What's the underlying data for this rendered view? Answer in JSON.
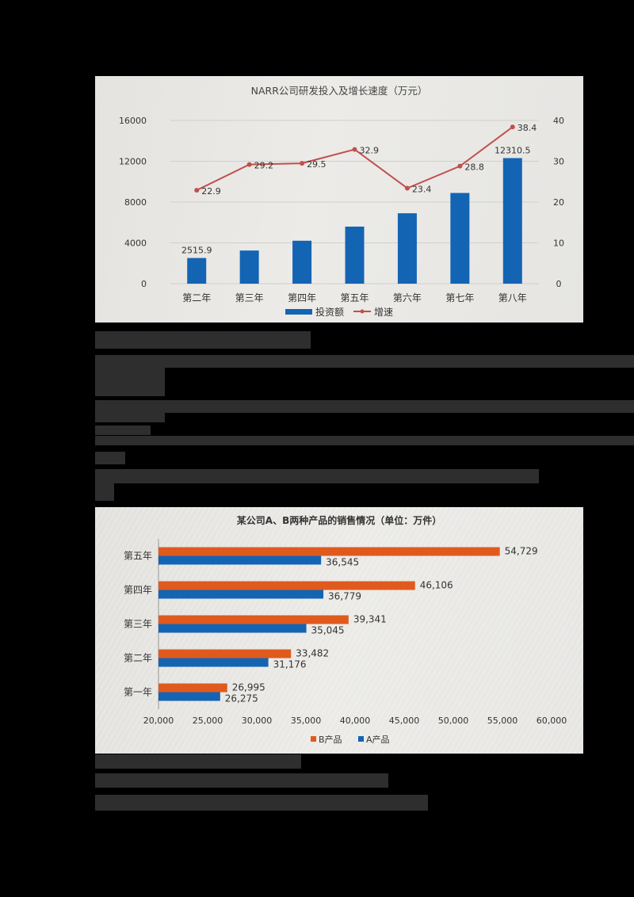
{
  "chart_data": [
    {
      "type": "bar+line",
      "title": "NARR公司研发投入及增长速度（万元）",
      "categories": [
        "第二年",
        "第三年",
        "第四年",
        "第五年",
        "第六年",
        "第七年",
        "第八年"
      ],
      "series": [
        {
          "name": "投资额",
          "type": "bar",
          "axis": "left",
          "color": "#1464b4",
          "values": [
            2515.9,
            3250.5,
            4209.4,
            5594.3,
            6903.4,
            8891.6,
            12310.5
          ],
          "labels": [
            "2515.9",
            "",
            "",
            "",
            "",
            "",
            "12310.5"
          ]
        },
        {
          "name": "增速",
          "type": "line",
          "axis": "right",
          "color": "#c0504d",
          "values": [
            22.9,
            29.2,
            29.5,
            32.9,
            23.4,
            28.8,
            38.4
          ],
          "labels": [
            "22.9",
            "29.2",
            "29.5",
            "32.9",
            "23.4",
            "28.8",
            "38.4"
          ]
        }
      ],
      "y_left": {
        "ticks": [
          "0",
          "4000",
          "8000",
          "12000",
          "16000"
        ],
        "range": [
          0,
          16000
        ]
      },
      "y_right": {
        "ticks": [
          "0",
          "10",
          "20",
          "30",
          "40"
        ],
        "range": [
          0,
          40
        ]
      },
      "grid": true,
      "legend": {
        "position": "bottom",
        "items": [
          "投资额",
          "增速"
        ]
      }
    },
    {
      "type": "bar-horizontal",
      "title": "某公司A、B两种产品的销售情况（单位：万件）",
      "categories": [
        "第五年",
        "第四年",
        "第三年",
        "第二年",
        "第一年"
      ],
      "series": [
        {
          "name": "B产品",
          "color": "#e05a1e",
          "values": [
            54729,
            46106,
            39341,
            33482,
            26995
          ],
          "labels": [
            "54,729",
            "46,106",
            "39,341",
            "33,482",
            "26,995"
          ]
        },
        {
          "name": "A产品",
          "color": "#1464b4",
          "values": [
            36545,
            36779,
            35045,
            31176,
            26275
          ],
          "labels": [
            "36,545",
            "36,779",
            "35,045",
            "31,176",
            "26,275"
          ]
        }
      ],
      "x_axis": {
        "ticks": [
          "20,000",
          "25,000",
          "30,000",
          "35,000",
          "40,000",
          "45,000",
          "50,000",
          "55,000",
          "60,000"
        ],
        "range": [
          20000,
          60000
        ]
      },
      "legend": {
        "position": "bottom",
        "items": [
          "B产品",
          "A产品"
        ]
      }
    }
  ],
  "chart1": {
    "title": "NARR公司研发投入及增长速度（万元）"
  },
  "chart2": {
    "title": "某公司A、B两种产品的销售情况（单位：万件）"
  }
}
